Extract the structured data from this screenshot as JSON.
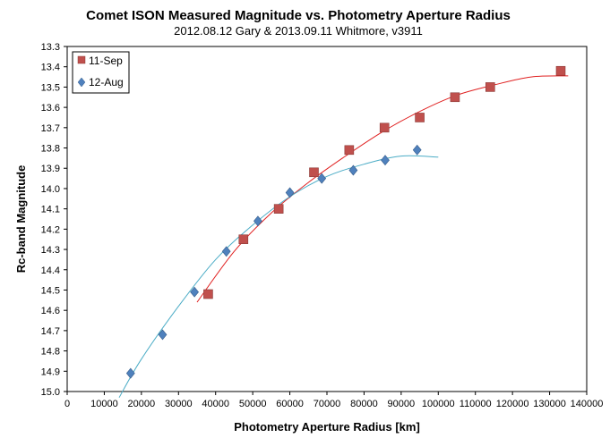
{
  "chart_data": {
    "type": "scatter",
    "title": "Comet ISON Measured Magnitude vs. Photometry Aperture Radius",
    "subtitle": "2012.08.12 Gary & 2013.09.11 Whitmore, v3911",
    "xlabel": "Photometry Aperture Radius [km]",
    "ylabel": "Rc-band Magnitude",
    "xlim": [
      0,
      140000
    ],
    "ylim": [
      13.3,
      15.0
    ],
    "y_inverted": true,
    "grid": false,
    "legend_position": "top-left",
    "x_ticks": [
      0,
      10000,
      20000,
      30000,
      40000,
      50000,
      60000,
      70000,
      80000,
      90000,
      100000,
      110000,
      120000,
      130000,
      140000
    ],
    "x_tick_labels": [
      "0",
      "10000",
      "20000",
      "30000",
      "40000",
      "50000",
      "60000",
      "70000",
      "80000",
      "90000",
      "100000",
      "110000",
      "120000",
      "130000",
      "140000"
    ],
    "y_ticks": [
      13.3,
      13.4,
      13.5,
      13.6,
      13.7,
      13.8,
      13.9,
      14.0,
      14.1,
      14.2,
      14.3,
      14.4,
      14.5,
      14.6,
      14.7,
      14.8,
      14.9,
      15.0
    ],
    "y_tick_labels": [
      "13.3",
      "13.4",
      "13.5",
      "13.6",
      "13.7",
      "13.8",
      "13.9",
      "14.0",
      "14.1",
      "14.2",
      "14.3",
      "14.4",
      "14.5",
      "14.6",
      "14.7",
      "14.8",
      "14.9",
      "15.0"
    ],
    "series": [
      {
        "name": "11-Sep",
        "marker": "square",
        "color": "#C0504D",
        "x": [
          38000,
          47500,
          57000,
          66500,
          76000,
          85500,
          95000,
          104500,
          114000,
          133000
        ],
        "y": [
          14.52,
          14.25,
          14.1,
          13.92,
          13.81,
          13.7,
          13.65,
          13.55,
          13.5,
          13.42
        ]
      },
      {
        "name": "12-Aug",
        "marker": "diamond",
        "color": "#4F81BD",
        "x": [
          17100,
          25700,
          34300,
          42900,
          51400,
          60000,
          68600,
          77100,
          85700,
          94300
        ],
        "y": [
          14.91,
          14.72,
          14.51,
          14.31,
          14.16,
          14.02,
          13.95,
          13.91,
          13.86,
          13.81
        ]
      }
    ],
    "trendlines": [
      {
        "series": "11-Sep",
        "color": "#E02020",
        "x": [
          35000,
          45000,
          55000,
          65000,
          75000,
          85000,
          95000,
          105000,
          115000,
          125000,
          135000
        ],
        "y": [
          14.56,
          14.31,
          14.12,
          13.97,
          13.84,
          13.72,
          13.62,
          13.54,
          13.49,
          13.45,
          13.445
        ]
      },
      {
        "series": "12-Aug",
        "color": "#4BACC6",
        "x": [
          14000,
          20000,
          30000,
          40000,
          50000,
          60000,
          70000,
          80000,
          90000,
          100000
        ],
        "y": [
          15.03,
          14.84,
          14.58,
          14.35,
          14.18,
          14.04,
          13.94,
          13.88,
          13.84,
          13.845
        ]
      }
    ]
  }
}
